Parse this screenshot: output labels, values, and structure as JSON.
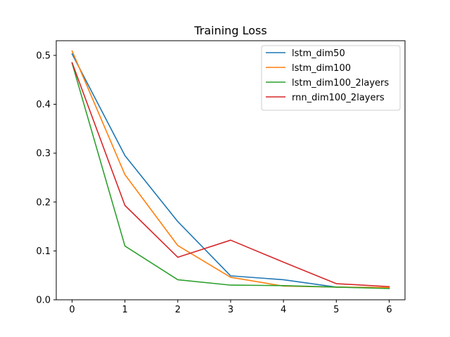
{
  "chart_data": {
    "type": "line",
    "title": "Training Loss",
    "xlabel": "",
    "ylabel": "",
    "x": [
      0,
      1,
      2,
      3,
      4,
      5,
      6
    ],
    "xlim": [
      -0.3,
      6.3
    ],
    "ylim": [
      0,
      0.53
    ],
    "xticks": [
      0,
      1,
      2,
      3,
      4,
      5,
      6
    ],
    "yticks": [
      0.0,
      0.1,
      0.2,
      0.3,
      0.4,
      0.5
    ],
    "ytick_labels": [
      "0.0",
      "0.1",
      "0.2",
      "0.3",
      "0.4",
      "0.5"
    ],
    "grid": false,
    "legend_position": "top-right",
    "series": [
      {
        "name": "lstm_dim50",
        "color": "#1f77b4",
        "values": [
          0.503,
          0.295,
          0.16,
          0.049,
          0.041,
          0.026,
          0.024
        ]
      },
      {
        "name": "lstm_dim100",
        "color": "#ff7f0e",
        "values": [
          0.509,
          0.256,
          0.111,
          0.046,
          0.028,
          0.026,
          0.025
        ]
      },
      {
        "name": "lstm_dim100_2layers",
        "color": "#2ca02c",
        "values": [
          0.484,
          0.11,
          0.041,
          0.03,
          0.029,
          0.026,
          0.023
        ]
      },
      {
        "name": "rnn_dim100_2layers",
        "color": "#d62728",
        "values": [
          0.485,
          0.193,
          0.087,
          0.122,
          0.077,
          0.033,
          0.027
        ]
      }
    ]
  }
}
